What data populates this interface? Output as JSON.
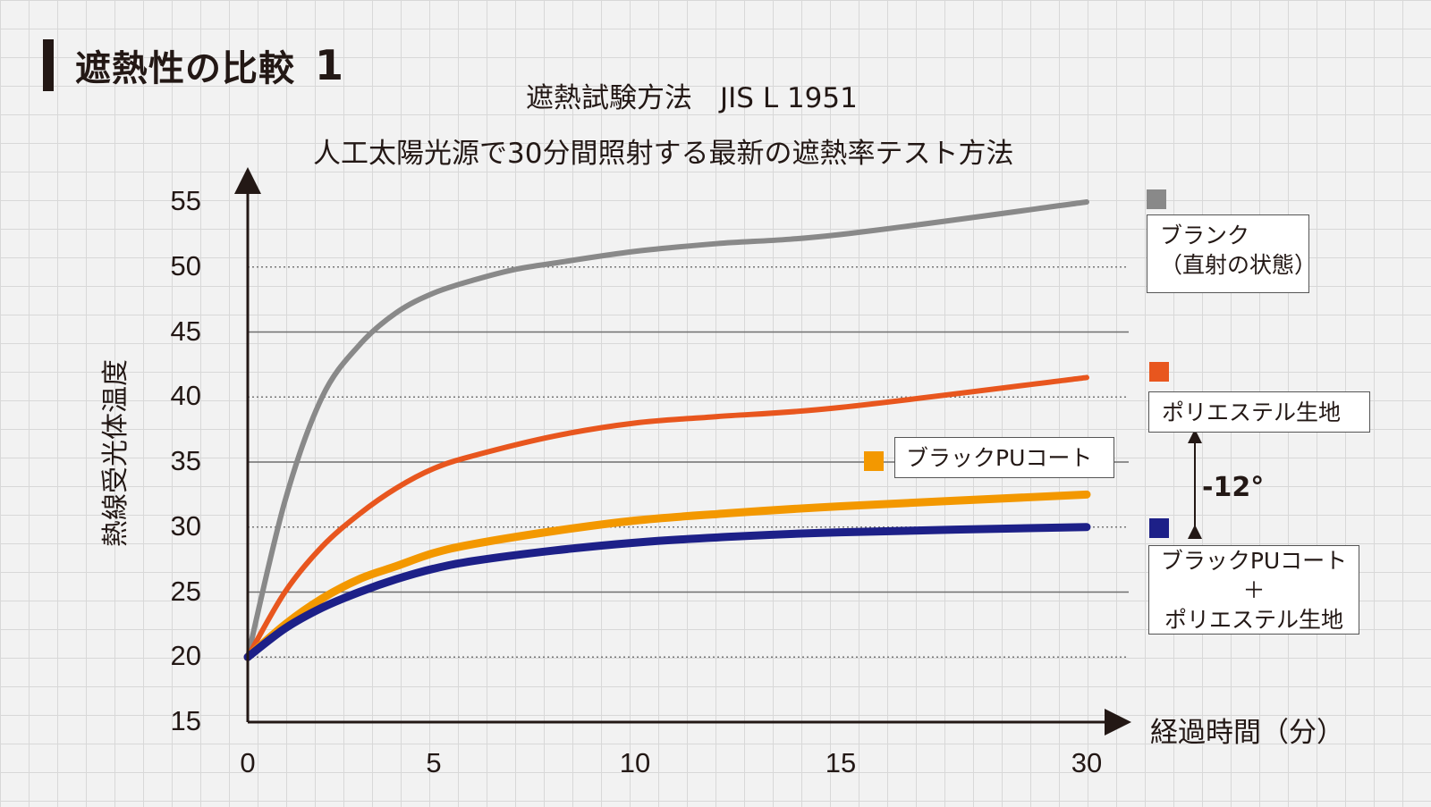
{
  "heading": {
    "text": "遮熱性の比較",
    "number": "1"
  },
  "subtitle_line1": "遮熱試験方法　JIS L 1951",
  "subtitle_line2": "人工太陽光源で30分間照射する最新の遮熱率テスト方法",
  "chart_data": {
    "type": "line",
    "title": "遮熱試験方法　JIS L 1951",
    "subtitle": "人工太陽光源で30分間照射する最新の遮熱率テスト方法",
    "xlabel": "経過時間（分）",
    "ylabel": "熱線受光体温度",
    "x_ticks": [
      "0",
      "5",
      "10",
      "15",
      "30"
    ],
    "y_ticks": [
      "15",
      "20",
      "25",
      "30",
      "35",
      "40",
      "45",
      "50",
      "55"
    ],
    "ylim": [
      15,
      55
    ],
    "gridlines_solid": [
      25,
      35,
      45
    ],
    "gridlines_dotted": [
      20,
      30,
      40,
      50
    ],
    "series": [
      {
        "name": "ブランク（直射の状態）",
        "color": "#898989",
        "x": [
          "0",
          "1",
          "2",
          "3",
          "4",
          "5",
          "6",
          "7",
          "8",
          "10",
          "12",
          "15",
          "30"
        ],
        "values": [
          20,
          32,
          40,
          44,
          46.5,
          48,
          49,
          49.8,
          50.3,
          51.2,
          51.8,
          52.5,
          55
        ]
      },
      {
        "name": "ポリエステル生地",
        "color": "#e8561e",
        "x": [
          "0",
          "1",
          "2",
          "3",
          "4",
          "5",
          "6",
          "8",
          "10",
          "12",
          "15",
          "30"
        ],
        "values": [
          20,
          25,
          28.5,
          31,
          33,
          34.5,
          35.5,
          37,
          38,
          38.5,
          39.2,
          41.5
        ]
      },
      {
        "name": "ブラックPUコート",
        "color": "#f39800",
        "x": [
          "0",
          "1",
          "2",
          "3",
          "4",
          "5",
          "6",
          "8",
          "10",
          "12",
          "15",
          "30"
        ],
        "values": [
          20,
          22.5,
          24.5,
          26,
          27,
          28,
          28.7,
          29.7,
          30.5,
          31,
          31.6,
          32.5
        ]
      },
      {
        "name": "ブラックPUコート＋ポリエステル生地",
        "color": "#1d2088",
        "x": [
          "0",
          "1",
          "2",
          "3",
          "4",
          "5",
          "6",
          "8",
          "10",
          "12",
          "15",
          "30"
        ],
        "values": [
          20,
          22.2,
          23.8,
          25,
          26,
          26.8,
          27.4,
          28.2,
          28.8,
          29.2,
          29.6,
          30
        ]
      }
    ]
  },
  "legend": {
    "blank_line1": "ブランク",
    "blank_line2": "（直射の状態）",
    "polyester": "ポリエステル生地",
    "black_pu": "ブラックPUコート",
    "combo_line1": "ブラックPUコート",
    "combo_line2": "＋",
    "combo_line3": "ポリエステル生地"
  },
  "difference_label": "-12°"
}
